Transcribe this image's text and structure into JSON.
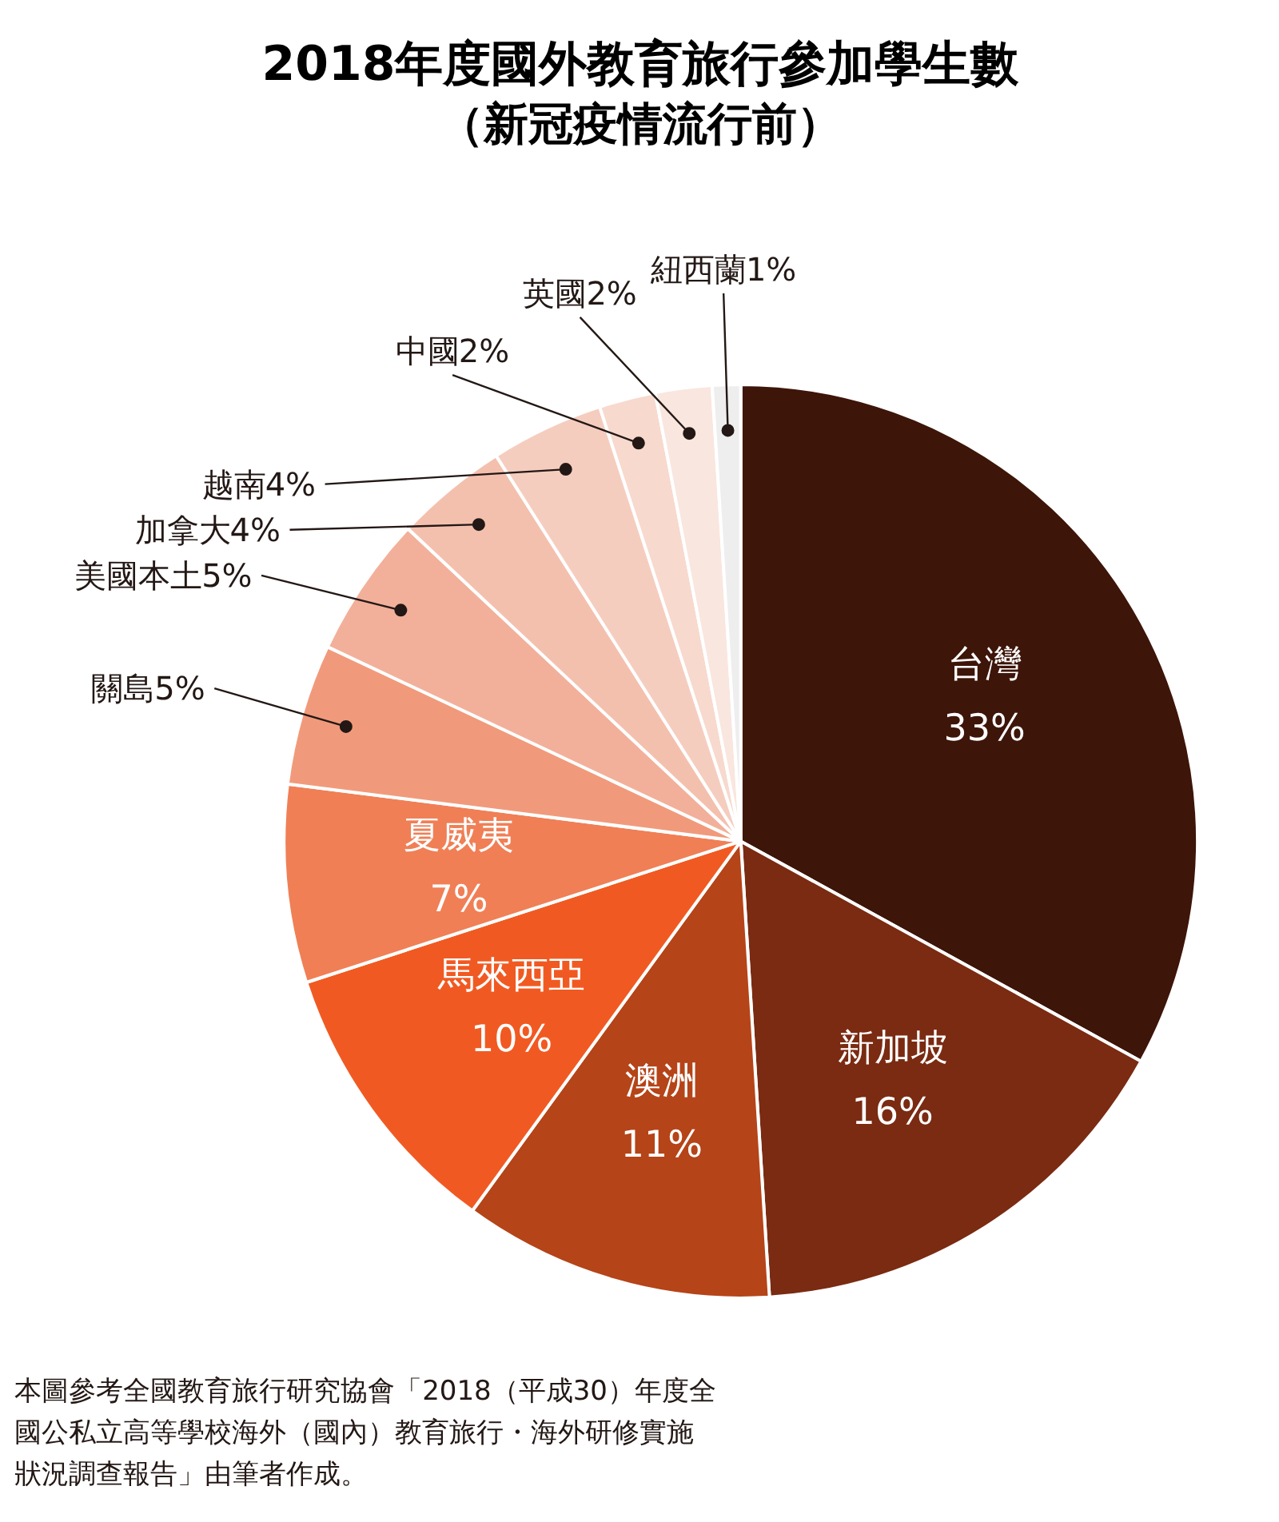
{
  "chart_data": {
    "type": "pie",
    "title": "2018年度國外教育旅行參加學生數",
    "subtitle": "（新冠疫情流行前）",
    "categories": [
      "台灣",
      "新加坡",
      "澳洲",
      "馬來西亞",
      "夏威夷",
      "關島",
      "美國本土",
      "加拿大",
      "越南",
      "中國",
      "英國",
      "紐西蘭"
    ],
    "values": [
      33,
      16,
      11,
      10,
      7,
      5,
      5,
      4,
      4,
      2,
      2,
      1
    ],
    "colors": [
      "#3d1509",
      "#7a2b12",
      "#b54418",
      "#f05a22",
      "#f07f56",
      "#f19a7b",
      "#f2b09a",
      "#f4c0ae",
      "#f5cdbf",
      "#f7d9ce",
      "#f9e6df",
      "#eeeeee"
    ],
    "value_labels": [
      "33%",
      "16%",
      "11%",
      "10%",
      "7%",
      "5%",
      "5%",
      "4%",
      "4%",
      "2%",
      "2%",
      "1%"
    ],
    "annotations": [
      "本圖參考全國教育旅行研究協會「2018（平成30）年度全國公私立高等學校海外（國內）教育旅行・海外研修實施狀況調查報告」由筆者作成。"
    ]
  }
}
